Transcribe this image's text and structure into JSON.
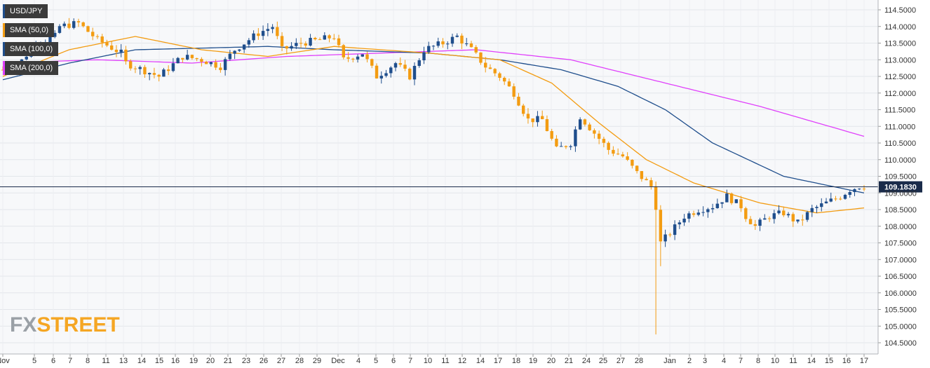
{
  "chart_data": {
    "type": "candlestick",
    "title": "USD/JPY",
    "ylim": [
      104.3,
      114.75
    ],
    "y_ticks": [
      "114.5000",
      "114.0000",
      "113.5000",
      "113.0000",
      "112.5000",
      "112.0000",
      "111.5000",
      "111.0000",
      "110.5000",
      "110.0000",
      "109.5000",
      "109.0000",
      "108.5000",
      "108.0000",
      "107.5000",
      "107.0000",
      "106.5000",
      "106.0000",
      "105.5000",
      "105.0000",
      "104.5000"
    ],
    "x_labels": [
      "Nov",
      "5",
      "6",
      "7",
      "8",
      "11",
      "13",
      "14",
      "15",
      "16",
      "19",
      "20",
      "21",
      "23",
      "26",
      "27",
      "28",
      "29",
      "Dec",
      "4",
      "5",
      "6",
      "7",
      "10",
      "11",
      "12",
      "14",
      "17",
      "18",
      "19",
      "20",
      "21",
      "24",
      "25",
      "27",
      "28",
      "Jan",
      "2",
      "3",
      "4",
      "7",
      "8",
      "10",
      "11",
      "14",
      "15",
      "16",
      "17"
    ],
    "current_price": 109.183,
    "current_price_label": "109.1830",
    "grid": true,
    "legend_placement": "top-left",
    "series": [
      {
        "name": "USD/JPY",
        "color": "#1f4e8c",
        "up_color": "#1f4e8c",
        "down_color": "#f39c12",
        "close_anchors": [
          [
            0,
            112.7
          ],
          [
            3,
            112.8
          ],
          [
            7,
            113.5
          ],
          [
            11,
            113.7
          ],
          [
            12,
            114.0
          ],
          [
            16,
            114.1
          ],
          [
            20,
            113.6
          ],
          [
            25,
            113.2
          ],
          [
            26,
            112.9
          ],
          [
            33,
            112.5
          ],
          [
            38,
            113.1
          ],
          [
            42,
            113.0
          ],
          [
            46,
            112.8
          ],
          [
            49,
            113.3
          ],
          [
            54,
            113.8
          ],
          [
            57,
            114.0
          ],
          [
            59,
            113.3
          ],
          [
            63,
            113.5
          ],
          [
            67,
            113.6
          ],
          [
            70,
            113.7
          ],
          [
            72,
            113.0
          ],
          [
            76,
            113.2
          ],
          [
            79,
            112.5
          ],
          [
            83,
            112.9
          ],
          [
            86,
            112.5
          ],
          [
            89,
            113.3
          ],
          [
            93,
            113.5
          ],
          [
            96,
            113.7
          ],
          [
            99,
            113.3
          ],
          [
            102,
            112.8
          ],
          [
            105,
            112.5
          ],
          [
            108,
            112.0
          ],
          [
            111,
            111.2
          ],
          [
            114,
            111.2
          ],
          [
            117,
            110.3
          ],
          [
            120,
            110.5
          ],
          [
            122,
            111.3
          ],
          [
            125,
            110.8
          ],
          [
            128,
            110.3
          ],
          [
            131,
            110.1
          ],
          [
            134,
            109.6
          ],
          [
            137,
            109.2
          ],
          [
            138,
            108.6
          ],
          [
            139,
            107.5
          ],
          [
            141,
            107.8
          ],
          [
            144,
            108.3
          ],
          [
            147,
            108.5
          ],
          [
            150,
            108.6
          ],
          [
            153,
            108.9
          ],
          [
            156,
            108.6
          ],
          [
            157,
            108.3
          ],
          [
            159,
            108.0
          ],
          [
            162,
            108.3
          ],
          [
            165,
            108.4
          ],
          [
            168,
            108.1
          ],
          [
            171,
            108.5
          ],
          [
            174,
            108.7
          ],
          [
            177,
            108.9
          ],
          [
            179,
            109.1
          ],
          [
            181,
            109.2
          ]
        ]
      },
      {
        "name": "SMA (50,0)",
        "color": "#f39c12",
        "anchors": [
          [
            0,
            112.5
          ],
          [
            14,
            113.3
          ],
          [
            28,
            113.7
          ],
          [
            42,
            113.3
          ],
          [
            56,
            113.1
          ],
          [
            70,
            113.4
          ],
          [
            90,
            113.2
          ],
          [
            105,
            113.0
          ],
          [
            116,
            112.3
          ],
          [
            126,
            111.1
          ],
          [
            136,
            110.0
          ],
          [
            146,
            109.3
          ],
          [
            160,
            108.7
          ],
          [
            172,
            108.4
          ],
          [
            182,
            108.55
          ]
        ]
      },
      {
        "name": "SMA (100,0)",
        "color": "#1f4e8c",
        "anchors": [
          [
            0,
            112.4
          ],
          [
            14,
            112.9
          ],
          [
            28,
            113.3
          ],
          [
            42,
            113.35
          ],
          [
            56,
            113.4
          ],
          [
            70,
            113.3
          ],
          [
            90,
            113.2
          ],
          [
            105,
            113.0
          ],
          [
            118,
            112.7
          ],
          [
            130,
            112.2
          ],
          [
            140,
            111.5
          ],
          [
            150,
            110.5
          ],
          [
            165,
            109.5
          ],
          [
            182,
            109.0
          ]
        ]
      },
      {
        "name": "SMA (200,0)",
        "color": "#e040fb",
        "anchors": [
          [
            0,
            112.9
          ],
          [
            20,
            113.0
          ],
          [
            40,
            112.9
          ],
          [
            60,
            113.1
          ],
          [
            80,
            113.2
          ],
          [
            100,
            113.3
          ],
          [
            120,
            113.0
          ],
          [
            140,
            112.3
          ],
          [
            160,
            111.6
          ],
          [
            182,
            110.7
          ]
        ]
      }
    ]
  },
  "watermark": {
    "part1": "FX",
    "part2": "STREET"
  }
}
